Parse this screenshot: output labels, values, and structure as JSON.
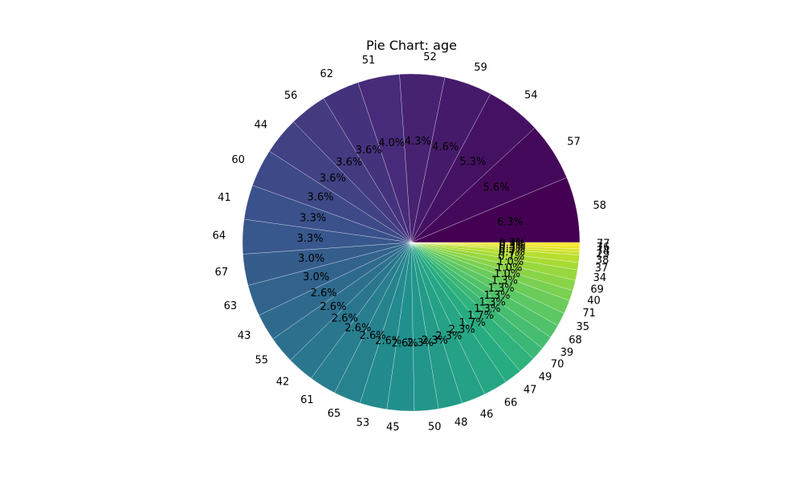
{
  "chart_data": {
    "type": "pie",
    "title": "Pie Chart: age",
    "colormap": "viridis",
    "start_angle": "0 degrees (3 o'clock), counter-clockwise",
    "autopct_format": "percent with 1 decimal",
    "slices": [
      {
        "label": "58",
        "value": 6.3
      },
      {
        "label": "57",
        "value": 5.6
      },
      {
        "label": "54",
        "value": 5.3
      },
      {
        "label": "59",
        "value": 4.6
      },
      {
        "label": "52",
        "value": 4.3
      },
      {
        "label": "51",
        "value": 4.0
      },
      {
        "label": "62",
        "value": 3.6
      },
      {
        "label": "56",
        "value": 3.6
      },
      {
        "label": "44",
        "value": 3.6
      },
      {
        "label": "60",
        "value": 3.6
      },
      {
        "label": "41",
        "value": 3.3
      },
      {
        "label": "64",
        "value": 3.3
      },
      {
        "label": "67",
        "value": 3.0
      },
      {
        "label": "63",
        "value": 3.0
      },
      {
        "label": "43",
        "value": 2.6
      },
      {
        "label": "55",
        "value": 2.6
      },
      {
        "label": "42",
        "value": 2.6
      },
      {
        "label": "61",
        "value": 2.6
      },
      {
        "label": "65",
        "value": 2.6
      },
      {
        "label": "53",
        "value": 2.6
      },
      {
        "label": "45",
        "value": 2.6
      },
      {
        "label": "50",
        "value": 2.3
      },
      {
        "label": "48",
        "value": 2.3
      },
      {
        "label": "46",
        "value": 2.3
      },
      {
        "label": "66",
        "value": 2.3
      },
      {
        "label": "47",
        "value": 1.7
      },
      {
        "label": "49",
        "value": 1.7
      },
      {
        "label": "70",
        "value": 1.3
      },
      {
        "label": "39",
        "value": 1.3
      },
      {
        "label": "68",
        "value": 1.3
      },
      {
        "label": "35",
        "value": 1.3
      },
      {
        "label": "71",
        "value": 1.3
      },
      {
        "label": "40",
        "value": 1.0
      },
      {
        "label": "69",
        "value": 1.0
      },
      {
        "label": "34",
        "value": 1.0
      },
      {
        "label": "37",
        "value": 0.7
      },
      {
        "label": "38",
        "value": 0.7
      },
      {
        "label": "29",
        "value": 0.3
      },
      {
        "label": "74",
        "value": 0.3
      },
      {
        "label": "76",
        "value": 0.3
      },
      {
        "label": "77",
        "value": 0.3
      }
    ]
  }
}
